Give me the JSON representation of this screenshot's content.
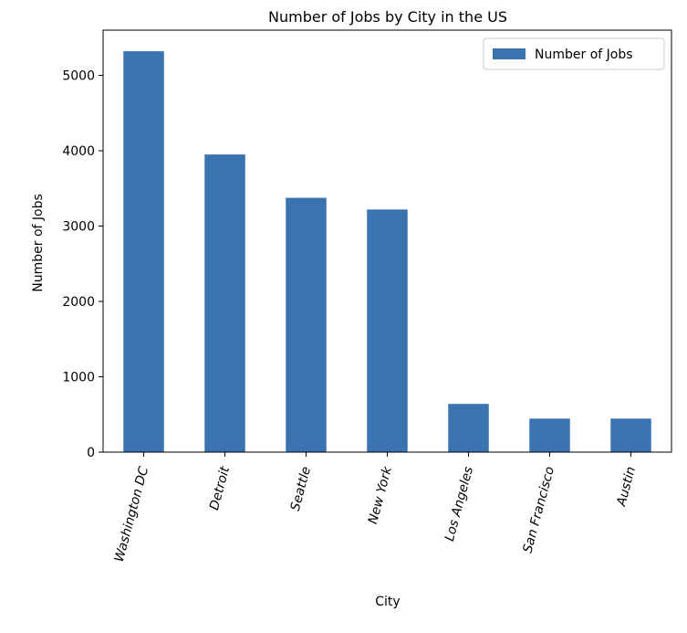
{
  "chart_data": {
    "type": "bar",
    "title": "Number of Jobs by City in the US",
    "xlabel": "City",
    "ylabel": "Number of Jobs",
    "categories": [
      "Washington DC",
      "Detroit",
      "Seattle",
      "New York",
      "Los Angeles",
      "San Francisco",
      "Austin"
    ],
    "series": [
      {
        "name": "Number of Jobs",
        "values": [
          5320,
          3950,
          3375,
          3220,
          640,
          445,
          445
        ]
      }
    ],
    "ylim": [
      0,
      5600
    ],
    "yticks": [
      0,
      1000,
      2000,
      3000,
      4000,
      5000
    ],
    "grid": false,
    "legend_position": "top-right",
    "colors": {
      "bar": "#3a73b0",
      "axis": "#000000",
      "background": "#ffffff"
    }
  }
}
